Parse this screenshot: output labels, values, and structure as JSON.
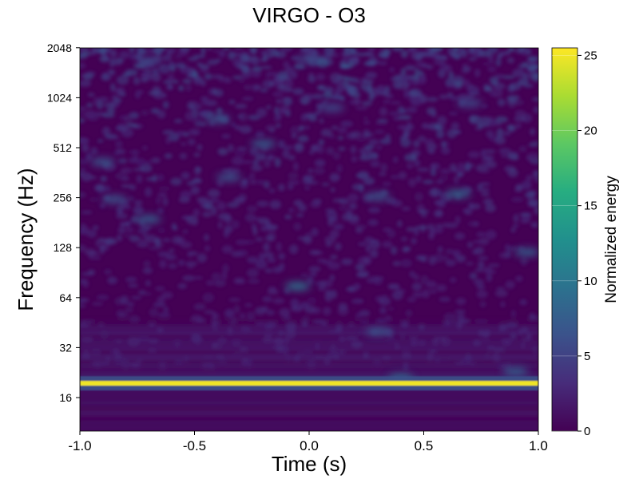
{
  "chart_data": {
    "type": "heatmap",
    "title": "VIRGO - O3",
    "xlabel": "Time (s)",
    "ylabel": "Frequency (Hz)",
    "xlim": [
      -1.0,
      1.0
    ],
    "ylim": [
      10,
      2048
    ],
    "yscale": "log2",
    "xticks": [
      -1.0,
      -0.5,
      0.0,
      0.5,
      1.0
    ],
    "xtick_labels": [
      "-1.0",
      "-0.5",
      "0.0",
      "0.5",
      "1.0"
    ],
    "yticks": [
      16,
      32,
      64,
      128,
      256,
      512,
      1024,
      2048
    ],
    "ytick_labels": [
      "16",
      "32",
      "64",
      "128",
      "256",
      "512",
      "1024",
      "2048"
    ],
    "colormap": "viridis",
    "colorbar": {
      "label": "Normalized energy",
      "range": [
        0,
        25.5
      ],
      "ticks": [
        0,
        5,
        10,
        15,
        20,
        25
      ],
      "tick_labels": [
        "0",
        "5",
        "10",
        "15",
        "20",
        "25"
      ]
    },
    "features": [
      {
        "name": "line",
        "freq_hz": 19.5,
        "t_start": -1.0,
        "t_end": 1.0,
        "energy": 25
      },
      {
        "name": "blob",
        "time_s": -0.05,
        "freq_hz": 75,
        "energy": 10
      },
      {
        "name": "blob",
        "time_s": 0.4,
        "freq_hz": 21,
        "energy": 9
      },
      {
        "name": "blob",
        "time_s": 0.9,
        "freq_hz": 23,
        "energy": 8
      },
      {
        "name": "blob",
        "time_s": 0.65,
        "freq_hz": 270,
        "energy": 9
      },
      {
        "name": "blob",
        "time_s": -0.7,
        "freq_hz": 190,
        "energy": 8
      },
      {
        "name": "blob",
        "time_s": -0.85,
        "freq_hz": 250,
        "energy": 7
      },
      {
        "name": "blob",
        "time_s": 0.3,
        "freq_hz": 40,
        "energy": 7
      },
      {
        "name": "blob",
        "time_s": 0.3,
        "freq_hz": 260,
        "energy": 7
      },
      {
        "name": "blob",
        "time_s": 0.95,
        "freq_hz": 120,
        "energy": 8
      },
      {
        "name": "blob",
        "time_s": -0.35,
        "freq_hz": 340,
        "energy": 7
      },
      {
        "name": "blob",
        "time_s": -0.2,
        "freq_hz": 540,
        "energy": 8
      },
      {
        "name": "blob",
        "time_s": -0.9,
        "freq_hz": 420,
        "energy": 7
      },
      {
        "name": "blob",
        "time_s": -0.4,
        "freq_hz": 760,
        "energy": 7
      },
      {
        "name": "blob",
        "time_s": 0.1,
        "freq_hz": 890,
        "energy": 6
      },
      {
        "name": "blob",
        "time_s": 0.7,
        "freq_hz": 950,
        "energy": 6
      },
      {
        "name": "blob",
        "time_s": -0.7,
        "freq_hz": 1700,
        "energy": 6
      },
      {
        "name": "blob",
        "time_s": 0.0,
        "freq_hz": 1750,
        "energy": 6
      }
    ]
  }
}
